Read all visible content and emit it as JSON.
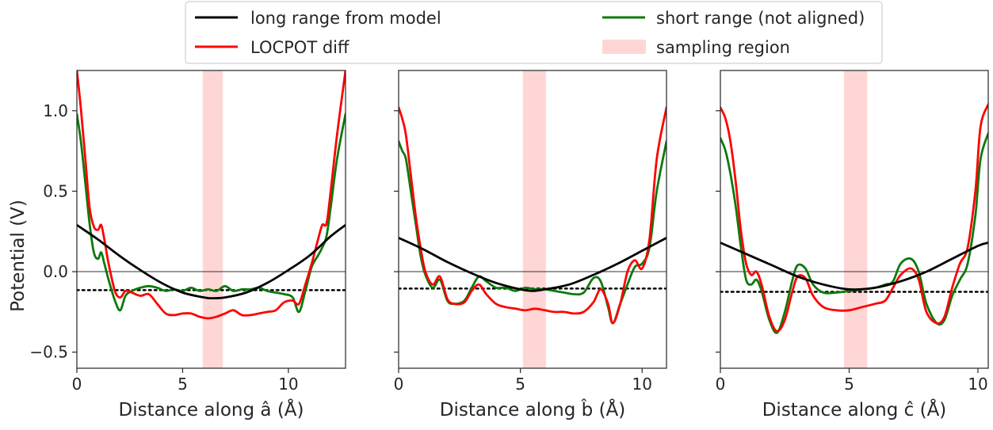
{
  "chart_data": [
    {
      "type": "line",
      "xlabel": "Distance along â (Å)",
      "ylabel": "Potential (V)",
      "xlim": [
        0,
        12.7
      ],
      "ylim": [
        -0.6,
        1.25
      ],
      "xticks": [
        0,
        5,
        10
      ],
      "yticks": [
        -0.5,
        0.0,
        0.5,
        1.0
      ],
      "ytick_labels": [
        "−0.5",
        "0.0",
        "0.5",
        "1.0"
      ],
      "sampling_region": [
        5.95,
        6.9
      ],
      "zero_line": 0.0,
      "average_level": -0.115,
      "series": [
        {
          "name": "long range from model",
          "color": "#000000",
          "x": [
            0,
            1,
            2,
            3,
            4,
            5,
            6,
            6.35,
            7,
            8,
            9,
            10,
            11,
            12,
            12.7
          ],
          "y": [
            0.29,
            0.2,
            0.1,
            0.01,
            -0.07,
            -0.13,
            -0.16,
            -0.165,
            -0.16,
            -0.13,
            -0.07,
            0.01,
            0.1,
            0.22,
            0.29
          ]
        },
        {
          "name": "LOCPOT diff",
          "color": "#ff0000",
          "x": [
            0,
            0.2,
            0.4,
            0.6,
            0.8,
            1.0,
            1.15,
            1.3,
            1.5,
            1.8,
            2.05,
            2.3,
            2.6,
            3.0,
            3.4,
            3.8,
            4.2,
            4.6,
            5.0,
            5.4,
            5.8,
            6.2,
            6.6,
            7.0,
            7.4,
            7.8,
            8.2,
            8.6,
            9.0,
            9.4,
            9.8,
            10.2,
            10.5,
            10.8,
            11.1,
            11.4,
            11.6,
            11.8,
            12.0,
            12.3,
            12.7
          ],
          "y": [
            1.25,
            1.0,
            0.7,
            0.4,
            0.28,
            0.26,
            0.29,
            0.2,
            0.05,
            -0.12,
            -0.16,
            -0.12,
            -0.13,
            -0.15,
            -0.14,
            -0.2,
            -0.26,
            -0.27,
            -0.26,
            -0.26,
            -0.28,
            -0.29,
            -0.28,
            -0.26,
            -0.24,
            -0.27,
            -0.27,
            -0.26,
            -0.25,
            -0.24,
            -0.19,
            -0.18,
            -0.2,
            -0.08,
            0.05,
            0.2,
            0.29,
            0.3,
            0.5,
            0.85,
            1.25
          ]
        },
        {
          "name": "short range (not aligned)",
          "color": "#0c7a0c",
          "x": [
            0,
            0.2,
            0.4,
            0.6,
            0.8,
            1.0,
            1.15,
            1.3,
            1.5,
            1.8,
            2.05,
            2.3,
            2.6,
            3.0,
            3.4,
            3.8,
            4.2,
            4.6,
            5.0,
            5.4,
            5.8,
            6.2,
            6.6,
            7.0,
            7.4,
            7.8,
            8.2,
            8.6,
            9.0,
            9.4,
            9.8,
            10.2,
            10.5,
            10.8,
            11.1,
            11.4,
            11.6,
            11.8,
            12.0,
            12.3,
            12.7
          ],
          "y": [
            0.98,
            0.8,
            0.55,
            0.3,
            0.12,
            0.08,
            0.12,
            0.05,
            -0.05,
            -0.18,
            -0.24,
            -0.15,
            -0.12,
            -0.1,
            -0.09,
            -0.1,
            -0.12,
            -0.11,
            -0.12,
            -0.1,
            -0.12,
            -0.11,
            -0.12,
            -0.09,
            -0.12,
            -0.11,
            -0.11,
            -0.1,
            -0.12,
            -0.13,
            -0.14,
            -0.16,
            -0.25,
            -0.12,
            0.03,
            0.1,
            0.15,
            0.22,
            0.4,
            0.7,
            0.98
          ]
        }
      ]
    },
    {
      "type": "line",
      "xlabel": "Distance along b̂ (Å)",
      "ylabel": "",
      "xlim": [
        0,
        11.0
      ],
      "ylim": [
        -0.6,
        1.25
      ],
      "xticks": [
        0,
        5,
        10
      ],
      "yticks": [
        -0.5,
        0.0,
        0.5,
        1.0
      ],
      "sampling_region": [
        5.1,
        6.05
      ],
      "zero_line": 0.0,
      "average_level": -0.105,
      "series": [
        {
          "name": "long range from model",
          "color": "#000000",
          "x": [
            0,
            1,
            2,
            3,
            4,
            5,
            5.5,
            6,
            7,
            8,
            9,
            10,
            11
          ],
          "y": [
            0.21,
            0.14,
            0.06,
            -0.01,
            -0.07,
            -0.11,
            -0.12,
            -0.11,
            -0.08,
            -0.02,
            0.05,
            0.13,
            0.21
          ]
        },
        {
          "name": "LOCPOT diff",
          "color": "#ff0000",
          "x": [
            0,
            0.15,
            0.3,
            0.5,
            0.7,
            0.9,
            1.1,
            1.4,
            1.7,
            2.0,
            2.3,
            2.7,
            3.0,
            3.3,
            3.6,
            4.0,
            4.4,
            4.8,
            5.2,
            5.6,
            6.0,
            6.4,
            6.8,
            7.2,
            7.6,
            8.0,
            8.3,
            8.6,
            8.8,
            9.1,
            9.4,
            9.7,
            10.0,
            10.3,
            10.6,
            11.0
          ],
          "y": [
            1.02,
            0.95,
            0.85,
            0.6,
            0.35,
            0.15,
            0.0,
            -0.08,
            -0.03,
            -0.17,
            -0.2,
            -0.19,
            -0.12,
            -0.08,
            -0.14,
            -0.2,
            -0.22,
            -0.23,
            -0.24,
            -0.23,
            -0.24,
            -0.25,
            -0.25,
            -0.26,
            -0.25,
            -0.19,
            -0.11,
            -0.2,
            -0.32,
            -0.2,
            0.0,
            0.07,
            0.02,
            0.2,
            0.7,
            1.02
          ]
        },
        {
          "name": "short range (not aligned)",
          "color": "#0c7a0c",
          "x": [
            0,
            0.15,
            0.3,
            0.5,
            0.7,
            0.9,
            1.1,
            1.4,
            1.7,
            2.0,
            2.3,
            2.7,
            3.0,
            3.3,
            3.6,
            4.0,
            4.4,
            4.8,
            5.2,
            5.6,
            6.0,
            6.4,
            6.8,
            7.2,
            7.6,
            8.0,
            8.3,
            8.6,
            8.8,
            9.1,
            9.4,
            9.7,
            10.0,
            10.3,
            10.6,
            11.0
          ],
          "y": [
            0.81,
            0.75,
            0.7,
            0.5,
            0.3,
            0.1,
            -0.02,
            -0.1,
            -0.05,
            -0.18,
            -0.2,
            -0.18,
            -0.1,
            -0.03,
            -0.06,
            -0.1,
            -0.1,
            -0.12,
            -0.1,
            -0.11,
            -0.11,
            -0.12,
            -0.13,
            -0.14,
            -0.13,
            -0.04,
            -0.06,
            -0.22,
            -0.32,
            -0.2,
            -0.08,
            0.03,
            0.05,
            0.15,
            0.5,
            0.81
          ]
        }
      ]
    },
    {
      "type": "line",
      "xlabel": "Distance along ĉ (Å)",
      "ylabel": "",
      "xlim": [
        0,
        10.4
      ],
      "ylim": [
        -0.6,
        1.25
      ],
      "xticks": [
        0,
        5,
        10
      ],
      "yticks": [
        -0.5,
        0.0,
        0.5,
        1.0
      ],
      "sampling_region": [
        4.8,
        5.7
      ],
      "zero_line": 0.0,
      "average_level": -0.125,
      "series": [
        {
          "name": "long range from model",
          "color": "#000000",
          "x": [
            0,
            1,
            2,
            3,
            4,
            5,
            6,
            7,
            8,
            9,
            10,
            10.4
          ],
          "y": [
            0.18,
            0.11,
            0.04,
            -0.03,
            -0.08,
            -0.11,
            -0.1,
            -0.06,
            0.0,
            0.08,
            0.16,
            0.18
          ]
        },
        {
          "name": "LOCPOT diff",
          "color": "#ff0000",
          "x": [
            0,
            0.2,
            0.4,
            0.6,
            0.8,
            1.0,
            1.2,
            1.4,
            1.6,
            1.9,
            2.2,
            2.5,
            2.8,
            3.0,
            3.3,
            3.6,
            4.0,
            4.5,
            5.0,
            5.5,
            6.0,
            6.4,
            6.7,
            7.0,
            7.4,
            7.7,
            8.0,
            8.4,
            8.7,
            9.0,
            9.3,
            9.6,
            9.9,
            10.1,
            10.4
          ],
          "y": [
            1.02,
            0.95,
            0.8,
            0.55,
            0.25,
            0.05,
            -0.02,
            0.0,
            -0.08,
            -0.28,
            -0.37,
            -0.3,
            -0.12,
            -0.03,
            -0.04,
            -0.15,
            -0.22,
            -0.24,
            -0.24,
            -0.22,
            -0.2,
            -0.18,
            -0.1,
            -0.02,
            0.02,
            -0.05,
            -0.25,
            -0.32,
            -0.28,
            -0.1,
            0.05,
            0.15,
            0.5,
            0.9,
            1.04
          ]
        },
        {
          "name": "short range (not aligned)",
          "color": "#0c7a0c",
          "x": [
            0,
            0.2,
            0.4,
            0.6,
            0.8,
            1.0,
            1.2,
            1.4,
            1.6,
            1.9,
            2.2,
            2.5,
            2.8,
            3.0,
            3.3,
            3.6,
            4.0,
            4.5,
            5.0,
            5.5,
            6.0,
            6.4,
            6.7,
            7.0,
            7.4,
            7.7,
            8.0,
            8.4,
            8.7,
            9.0,
            9.3,
            9.6,
            9.9,
            10.1,
            10.4
          ],
          "y": [
            0.83,
            0.75,
            0.6,
            0.4,
            0.15,
            -0.05,
            -0.08,
            -0.05,
            -0.12,
            -0.3,
            -0.38,
            -0.25,
            -0.05,
            0.04,
            0.02,
            -0.08,
            -0.13,
            -0.13,
            -0.12,
            -0.11,
            -0.1,
            -0.08,
            -0.06,
            0.05,
            0.08,
            0.0,
            -0.2,
            -0.32,
            -0.3,
            -0.15,
            -0.05,
            0.05,
            0.35,
            0.7,
            0.86
          ]
        }
      ]
    }
  ],
  "legend": {
    "placement": "top-center",
    "entries": [
      {
        "label": "long range from model",
        "color": "#000000",
        "kind": "line"
      },
      {
        "label": "LOCPOT diff",
        "color": "#ff0000",
        "kind": "line"
      },
      {
        "label": "short range (not aligned)",
        "color": "#0c7a0c",
        "kind": "line"
      },
      {
        "label": "sampling region",
        "color": "#ffd6d6",
        "kind": "patch"
      }
    ]
  }
}
